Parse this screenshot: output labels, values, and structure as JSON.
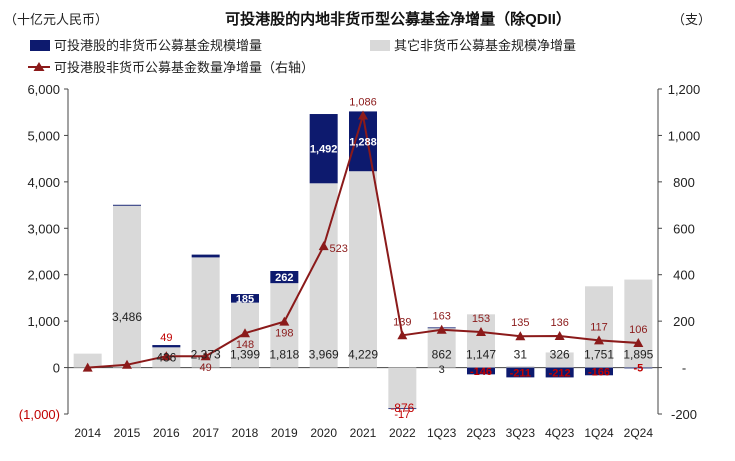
{
  "chart_data": {
    "type": "bar",
    "title": "可投港股的内地非货币型公募基金净增量（除QDII）",
    "left_unit": "（十亿元人民币）",
    "right_unit": "（支）",
    "legend": {
      "hk": "可投港股的非货币公募基金规模增量",
      "other": "其它非货币公募基金规模净增量",
      "count": "可投港股非货币公募基金数量净增量（右轴）"
    },
    "categories": [
      "2014",
      "2015",
      "2016",
      "2017",
      "2018",
      "2019",
      "2020",
      "2021",
      "2022",
      "1Q23",
      "2Q23",
      "3Q23",
      "4Q23",
      "1Q24",
      "2Q24"
    ],
    "ylim": [
      -1000,
      6000
    ],
    "y2lim": [
      -200,
      1200
    ],
    "y_ticks": [
      {
        "v": -1000,
        "label": "(1,000)"
      },
      {
        "v": 0,
        "label": "0"
      },
      {
        "v": 1000,
        "label": "1,000"
      },
      {
        "v": 2000,
        "label": "2,000"
      },
      {
        "v": 3000,
        "label": "3,000"
      },
      {
        "v": 4000,
        "label": "4,000"
      },
      {
        "v": 5000,
        "label": "5,000"
      },
      {
        "v": 6000,
        "label": "6,000"
      }
    ],
    "y2_ticks": [
      {
        "v": -200,
        "label": "-200"
      },
      {
        "v": 0,
        "label": "-"
      },
      {
        "v": 200,
        "label": "200"
      },
      {
        "v": 400,
        "label": "400"
      },
      {
        "v": 600,
        "label": "600"
      },
      {
        "v": 800,
        "label": "800"
      },
      {
        "v": 1000,
        "label": "1,000"
      },
      {
        "v": 1200,
        "label": "1,200"
      }
    ],
    "series": [
      {
        "name": "其它非货币公募基金规模净增量",
        "color": "#d9d9d9",
        "values": [
          300,
          3486,
          436,
          2373,
          1399,
          1818,
          3969,
          4229,
          -876,
          862,
          1147,
          31,
          326,
          1751,
          1895
        ],
        "labels": [
          "",
          "3,486",
          "436",
          "2,373",
          "1,399",
          "1,818",
          "3,969",
          "4,229",
          "-876",
          "862",
          "1,147",
          "31",
          "326",
          "1,751",
          "1,895"
        ]
      },
      {
        "name": "可投港股的非货币公募基金规模增量",
        "color": "#0d1a6e",
        "values": [
          0,
          20,
          49,
          60,
          185,
          262,
          1492,
          1288,
          -17,
          3,
          -146,
          -211,
          -212,
          -166,
          -5
        ],
        "labels": [
          "",
          "",
          "49",
          "",
          "185",
          "262",
          "1,492",
          "1,288",
          "-17",
          "3",
          "-146",
          "-211",
          "-212",
          "-166",
          "-5"
        ]
      },
      {
        "name": "可投港股非货币公募基金数量净增量（右轴）",
        "axis": "right",
        "color": "#8b1a1a",
        "values": [
          0,
          12,
          49,
          49,
          148,
          198,
          523,
          1086,
          139,
          163,
          153,
          135,
          136,
          117,
          106
        ],
        "labels": [
          "",
          "",
          "",
          "49",
          "148",
          "198",
          "523",
          "1,086",
          "139",
          "163",
          "153",
          "135",
          "136",
          "117",
          "106"
        ]
      }
    ]
  }
}
